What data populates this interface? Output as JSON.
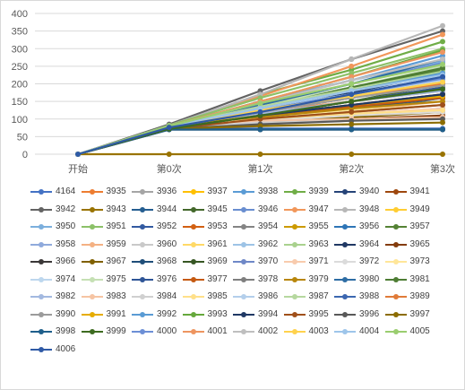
{
  "chart_data": {
    "type": "line",
    "title": "",
    "xlabel": "",
    "ylabel": "",
    "categories": [
      "开始",
      "第0次",
      "第1次",
      "第2次",
      "第3次"
    ],
    "ylim": [
      0,
      400
    ],
    "yticks": [
      0,
      50,
      100,
      150,
      200,
      250,
      300,
      350,
      400
    ],
    "grid": true,
    "legend_position": "bottom",
    "series": [
      {
        "name": "4164",
        "color": "#4472c4",
        "values": [
          0,
          73,
          73,
          73,
          73
        ]
      },
      {
        "name": "3935",
        "color": "#ed7d31",
        "values": [
          0,
          75,
          120,
          150,
          180
        ]
      },
      {
        "name": "3936",
        "color": "#a5a5a5",
        "values": [
          0,
          75,
          110,
          140,
          170
        ]
      },
      {
        "name": "3937",
        "color": "#ffc000",
        "values": [
          0,
          76,
          100,
          110,
          120
        ]
      },
      {
        "name": "3938",
        "color": "#5b9bd5",
        "values": [
          0,
          78,
          150,
          210,
          280
        ]
      },
      {
        "name": "3939",
        "color": "#70ad47",
        "values": [
          0,
          80,
          170,
          240,
          320
        ]
      },
      {
        "name": "3940",
        "color": "#264478",
        "values": [
          0,
          72,
          120,
          175,
          230
        ]
      },
      {
        "name": "3941",
        "color": "#9e480e",
        "values": [
          0,
          74,
          100,
          130,
          170
        ]
      },
      {
        "name": "3942",
        "color": "#636363",
        "values": [
          0,
          85,
          180,
          270,
          350
        ]
      },
      {
        "name": "3943",
        "color": "#997300",
        "values": [
          0,
          0,
          0,
          0,
          0
        ]
      },
      {
        "name": "3944",
        "color": "#255e91",
        "values": [
          0,
          72,
          90,
          120,
          160
        ]
      },
      {
        "name": "3945",
        "color": "#43682b",
        "values": [
          0,
          75,
          110,
          150,
          200
        ]
      },
      {
        "name": "3946",
        "color": "#698ed0",
        "values": [
          0,
          78,
          140,
          200,
          260
        ]
      },
      {
        "name": "3947",
        "color": "#f1975a",
        "values": [
          0,
          80,
          165,
          250,
          340
        ]
      },
      {
        "name": "3948",
        "color": "#b7b7b7",
        "values": [
          0,
          82,
          170,
          270,
          365
        ]
      },
      {
        "name": "3949",
        "color": "#ffcd33",
        "values": [
          0,
          78,
          130,
          170,
          210
        ]
      },
      {
        "name": "3950",
        "color": "#7cafdd",
        "values": [
          0,
          80,
          150,
          210,
          265
        ]
      },
      {
        "name": "3951",
        "color": "#8cc168",
        "values": [
          0,
          82,
          160,
          230,
          300
        ]
      },
      {
        "name": "3952",
        "color": "#335aa1",
        "values": [
          0,
          76,
          130,
          180,
          230
        ]
      },
      {
        "name": "3953",
        "color": "#d26012",
        "values": [
          0,
          74,
          110,
          140,
          170
        ]
      },
      {
        "name": "3954",
        "color": "#848484",
        "values": [
          0,
          78,
          120,
          160,
          200
        ]
      },
      {
        "name": "3955",
        "color": "#cc9a00",
        "values": [
          0,
          76,
          120,
          165,
          210
        ]
      },
      {
        "name": "3956",
        "color": "#2e75b6",
        "values": [
          0,
          73,
          95,
          110,
          130
        ]
      },
      {
        "name": "3957",
        "color": "#548235",
        "values": [
          0,
          80,
          140,
          190,
          240
        ]
      },
      {
        "name": "3958",
        "color": "#8faadc",
        "values": [
          0,
          78,
          125,
          170,
          210
        ]
      },
      {
        "name": "3959",
        "color": "#f4b183",
        "values": [
          0,
          76,
          100,
          125,
          150
        ]
      },
      {
        "name": "3960",
        "color": "#c9c9c9",
        "values": [
          0,
          78,
          105,
          130,
          160
        ]
      },
      {
        "name": "3961",
        "color": "#ffd966",
        "values": [
          0,
          77,
          115,
          150,
          190
        ]
      },
      {
        "name": "3962",
        "color": "#9dc3e6",
        "values": [
          0,
          78,
          120,
          160,
          200
        ]
      },
      {
        "name": "3963",
        "color": "#a9d18e",
        "values": [
          0,
          80,
          135,
          185,
          235
        ]
      },
      {
        "name": "3964",
        "color": "#203864",
        "values": [
          0,
          72,
          95,
          110,
          120
        ]
      },
      {
        "name": "3965",
        "color": "#843c0c",
        "values": [
          0,
          72,
          90,
          100,
          110
        ]
      },
      {
        "name": "3966",
        "color": "#3b3838",
        "values": [
          0,
          70,
          70,
          70,
          70
        ]
      },
      {
        "name": "3967",
        "color": "#806000",
        "values": [
          0,
          72,
          90,
          105,
          120
        ]
      },
      {
        "name": "3968",
        "color": "#1f4e79",
        "values": [
          0,
          72,
          100,
          130,
          160
        ]
      },
      {
        "name": "3969",
        "color": "#375623",
        "values": [
          0,
          74,
          120,
          170,
          210
        ]
      },
      {
        "name": "3970",
        "color": "#6f88c7",
        "values": [
          0,
          78,
          130,
          180,
          230
        ]
      },
      {
        "name": "3971",
        "color": "#f8cbad",
        "values": [
          0,
          76,
          100,
          115,
          130
        ]
      },
      {
        "name": "3972",
        "color": "#dbdbdb",
        "values": [
          0,
          76,
          95,
          110,
          120
        ]
      },
      {
        "name": "3973",
        "color": "#ffe699",
        "values": [
          0,
          76,
          105,
          125,
          140
        ]
      },
      {
        "name": "3974",
        "color": "#bdd7ee",
        "values": [
          0,
          80,
          130,
          170,
          210
        ]
      },
      {
        "name": "3975",
        "color": "#c5e0b4",
        "values": [
          0,
          80,
          140,
          190,
          250
        ]
      },
      {
        "name": "3976",
        "color": "#2f5597",
        "values": [
          0,
          74,
          110,
          150,
          190
        ]
      },
      {
        "name": "3977",
        "color": "#c55a11",
        "values": [
          0,
          74,
          110,
          135,
          160
        ]
      },
      {
        "name": "3978",
        "color": "#7f7f7f",
        "values": [
          0,
          74,
          100,
          120,
          140
        ]
      },
      {
        "name": "3979",
        "color": "#b8860b",
        "values": [
          0,
          74,
          105,
          130,
          150
        ]
      },
      {
        "name": "3980",
        "color": "#2e6da4",
        "values": [
          0,
          78,
          140,
          200,
          270
        ]
      },
      {
        "name": "3981",
        "color": "#4e7d34",
        "values": [
          0,
          78,
          130,
          190,
          245
        ]
      },
      {
        "name": "3982",
        "color": "#a3b9e0",
        "values": [
          0,
          78,
          115,
          150,
          180
        ]
      },
      {
        "name": "3983",
        "color": "#f6c4a3",
        "values": [
          0,
          76,
          95,
          100,
          105
        ]
      },
      {
        "name": "3984",
        "color": "#d0d0d0",
        "values": [
          0,
          76,
          90,
          95,
          100
        ]
      },
      {
        "name": "3985",
        "color": "#ffe08a",
        "values": [
          0,
          76,
          100,
          115,
          125
        ]
      },
      {
        "name": "3986",
        "color": "#b4cfeb",
        "values": [
          0,
          80,
          125,
          165,
          200
        ]
      },
      {
        "name": "3987",
        "color": "#b6d89f",
        "values": [
          0,
          80,
          135,
          185,
          230
        ]
      },
      {
        "name": "3988",
        "color": "#3c67b0",
        "values": [
          0,
          76,
          125,
          170,
          220
        ]
      },
      {
        "name": "3989",
        "color": "#e07b39",
        "values": [
          0,
          76,
          120,
          160,
          200
        ]
      },
      {
        "name": "3990",
        "color": "#9b9b9b",
        "values": [
          0,
          78,
          120,
          160,
          195
        ]
      },
      {
        "name": "3991",
        "color": "#e6ac00",
        "values": [
          0,
          76,
          110,
          140,
          165
        ]
      },
      {
        "name": "3992",
        "color": "#5a9bd4",
        "values": [
          0,
          78,
          130,
          180,
          230
        ]
      },
      {
        "name": "3993",
        "color": "#66a83c",
        "values": [
          0,
          80,
          150,
          220,
          295
        ]
      },
      {
        "name": "3994",
        "color": "#1f3864",
        "values": [
          0,
          72,
          110,
          140,
          170
        ]
      },
      {
        "name": "3995",
        "color": "#a0501a",
        "values": [
          0,
          72,
          100,
          120,
          140
        ]
      },
      {
        "name": "3996",
        "color": "#595959",
        "values": [
          0,
          72,
          85,
          95,
          100
        ]
      },
      {
        "name": "3997",
        "color": "#8c6d00",
        "values": [
          0,
          72,
          80,
          85,
          90
        ]
      },
      {
        "name": "3998",
        "color": "#1f5f8b",
        "values": [
          0,
          70,
          70,
          70,
          70
        ]
      },
      {
        "name": "3999",
        "color": "#3d6b20",
        "values": [
          0,
          72,
          110,
          150,
          185
        ]
      },
      {
        "name": "4000",
        "color": "#6c8fd6",
        "values": [
          0,
          78,
          125,
          170,
          215
        ]
      },
      {
        "name": "4001",
        "color": "#ee9560",
        "values": [
          0,
          80,
          150,
          220,
          290
        ]
      },
      {
        "name": "4002",
        "color": "#bfbfbf",
        "values": [
          0,
          80,
          145,
          210,
          270
        ]
      },
      {
        "name": "4003",
        "color": "#ffd24d",
        "values": [
          0,
          78,
          125,
          165,
          205
        ]
      },
      {
        "name": "4004",
        "color": "#9ec5ea",
        "values": [
          0,
          80,
          130,
          180,
          225
        ]
      },
      {
        "name": "4005",
        "color": "#9acd6f",
        "values": [
          0,
          80,
          145,
          200,
          255
        ]
      },
      {
        "name": "4006",
        "color": "#2f5aa6",
        "values": [
          0,
          76,
          120,
          170,
          220
        ]
      }
    ]
  }
}
